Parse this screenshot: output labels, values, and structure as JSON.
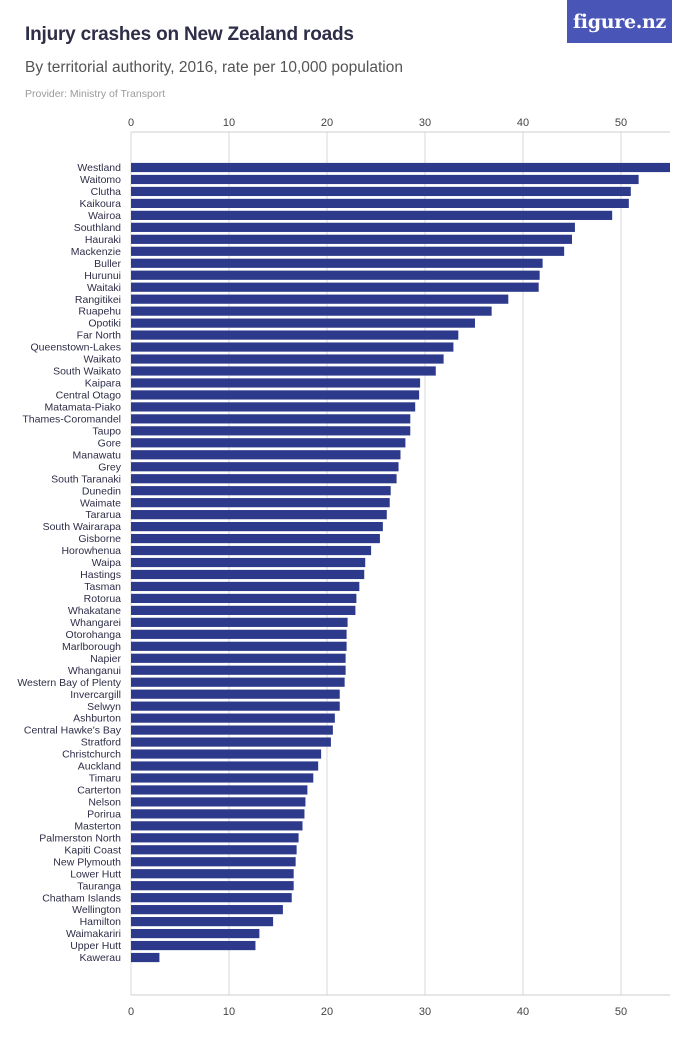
{
  "header": {
    "title": "Injury crashes on New Zealand roads",
    "subtitle": "By territorial authority, 2016, rate per 10,000 population",
    "provider": "Provider: Ministry of Transport",
    "logo_text": "figure.nz"
  },
  "colors": {
    "bar": "#2d3a8c",
    "logo_bg": "#4a55b8"
  },
  "chart_data": {
    "type": "bar",
    "orientation": "horizontal",
    "xlim": [
      0,
      55
    ],
    "xticks": [
      0,
      10,
      20,
      30,
      40,
      50
    ],
    "grid": true,
    "categories": [
      "Westland",
      "Waitomo",
      "Clutha",
      "Kaikoura",
      "Wairoa",
      "Southland",
      "Hauraki",
      "Mackenzie",
      "Buller",
      "Hurunui",
      "Waitaki",
      "Rangitikei",
      "Ruapehu",
      "Opotiki",
      "Far North",
      "Queenstown-Lakes",
      "Waikato",
      "South Waikato",
      "Kaipara",
      "Central Otago",
      "Matamata-Piako",
      "Thames-Coromandel",
      "Taupo",
      "Gore",
      "Manawatu",
      "Grey",
      "South Taranaki",
      "Dunedin",
      "Waimate",
      "Tararua",
      "South Wairarapa",
      "Gisborne",
      "Horowhenua",
      "Waipa",
      "Hastings",
      "Tasman",
      "Rotorua",
      "Whakatane",
      "Whangarei",
      "Otorohanga",
      "Marlborough",
      "Napier",
      "Whanganui",
      "Western Bay of Plenty",
      "Invercargill",
      "Selwyn",
      "Ashburton",
      "Central Hawke's Bay",
      "Stratford",
      "Christchurch",
      "Auckland",
      "Timaru",
      "Carterton",
      "Nelson",
      "Porirua",
      "Masterton",
      "Palmerston North",
      "Kapiti Coast",
      "New Plymouth",
      "Lower Hutt",
      "Tauranga",
      "Chatham Islands",
      "Wellington",
      "Hamilton",
      "Waimakariri",
      "Upper Hutt",
      "Kawerau"
    ],
    "values": [
      55.0,
      51.8,
      51.0,
      50.8,
      49.1,
      45.3,
      45.0,
      44.2,
      42.0,
      41.7,
      41.6,
      38.5,
      36.8,
      35.1,
      33.4,
      32.9,
      31.9,
      31.1,
      29.5,
      29.4,
      29.0,
      28.5,
      28.5,
      28.0,
      27.5,
      27.3,
      27.1,
      26.5,
      26.4,
      26.1,
      25.7,
      25.4,
      24.5,
      23.9,
      23.8,
      23.3,
      23.0,
      22.9,
      22.1,
      22.0,
      22.0,
      21.9,
      21.9,
      21.8,
      21.3,
      21.3,
      20.8,
      20.6,
      20.4,
      19.4,
      19.1,
      18.6,
      18.0,
      17.8,
      17.7,
      17.5,
      17.1,
      16.9,
      16.8,
      16.6,
      16.6,
      16.4,
      15.5,
      14.5,
      13.1,
      12.7,
      2.9
    ]
  }
}
